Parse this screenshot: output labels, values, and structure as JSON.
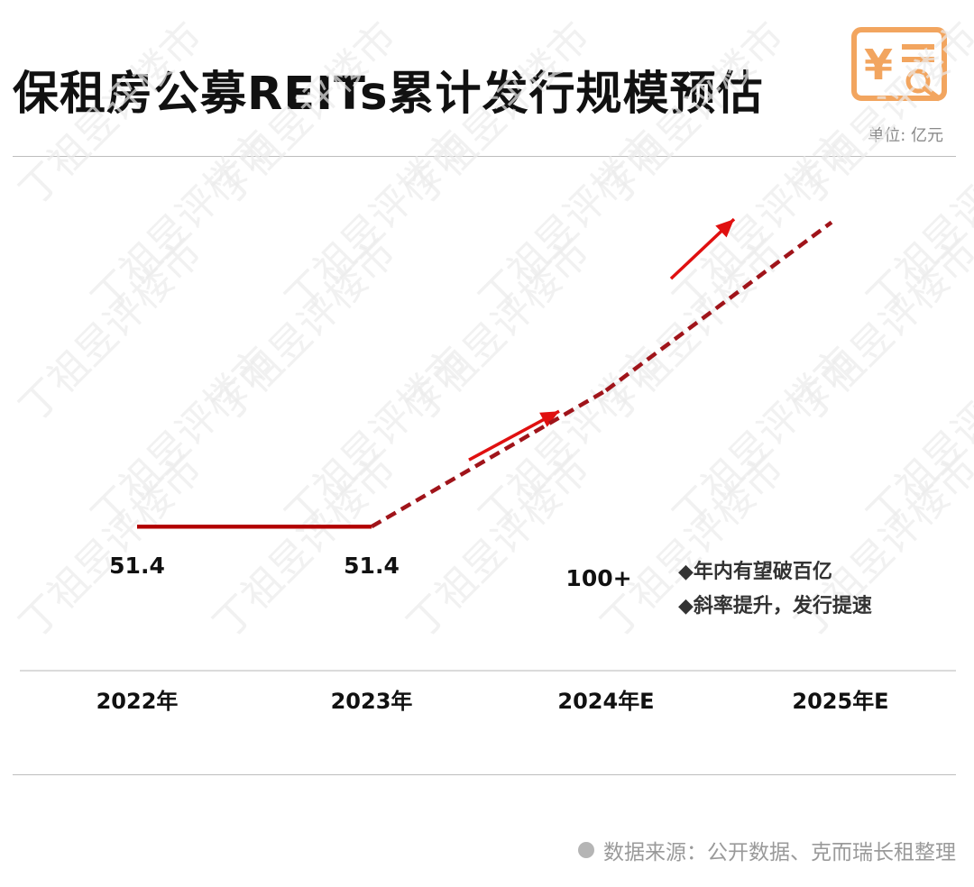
{
  "header": {
    "title": "保租房公募REITs累计发行规模预估",
    "unit": "单位: 亿元",
    "logo_icon": "yuan-document-search-icon",
    "accent": "#F2A55F"
  },
  "chart_data": {
    "type": "line",
    "categories": [
      "2022年",
      "2023年",
      "2024年E",
      "2025年E"
    ],
    "series": [
      {
        "values": [
          51.4,
          51.4,
          100,
          160
        ],
        "style": [
          "solid",
          "dashed",
          "dashed"
        ]
      }
    ],
    "data_labels": [
      "51.4",
      "51.4",
      "100+",
      ""
    ],
    "ylim": [
      0,
      175
    ],
    "colors": {
      "solid": "#B30000",
      "dashed": "#A0141A",
      "arrow": "#E01010"
    },
    "grid": false,
    "annotations": [
      "◆年内有望破百亿",
      "◆斜率提升，发行提速"
    ]
  },
  "watermark": "丁祖昱评楼市",
  "footer": {
    "source": "数据来源：公开数据、克而瑞长租整理"
  }
}
